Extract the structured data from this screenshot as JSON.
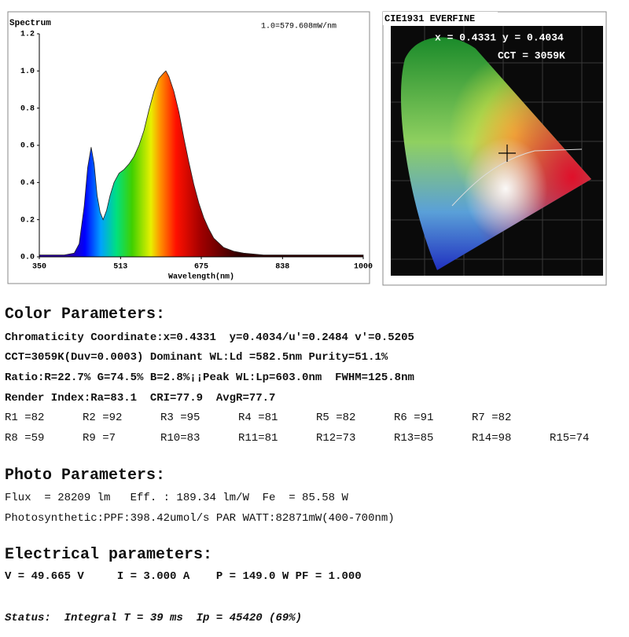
{
  "chart_data": {
    "type": "area",
    "title": "Spectrum",
    "annotation": "1.0=579.608mW/nm",
    "x_label": "Wavelength(nm)",
    "x": [
      350,
      400,
      420,
      430,
      440,
      447,
      454,
      460,
      466,
      472,
      478,
      485,
      492,
      500,
      510,
      520,
      530,
      540,
      550,
      560,
      570,
      580,
      590,
      600,
      604,
      610,
      620,
      630,
      640,
      650,
      660,
      670,
      680,
      690,
      700,
      720,
      740,
      760,
      800,
      900,
      1000
    ],
    "values": [
      0.01,
      0.01,
      0.02,
      0.07,
      0.27,
      0.48,
      0.59,
      0.5,
      0.33,
      0.24,
      0.2,
      0.25,
      0.33,
      0.4,
      0.45,
      0.47,
      0.5,
      0.54,
      0.6,
      0.68,
      0.79,
      0.89,
      0.96,
      0.99,
      1.0,
      0.97,
      0.89,
      0.78,
      0.64,
      0.51,
      0.39,
      0.29,
      0.21,
      0.15,
      0.1,
      0.05,
      0.03,
      0.02,
      0.01,
      0.01,
      0.01
    ],
    "xlim": [
      350,
      1000
    ],
    "xticks": [
      350,
      513,
      675,
      838,
      1000
    ],
    "ylim": [
      0,
      1.2
    ],
    "yticks": [
      {
        "value": 0,
        "label": "0.0"
      },
      0.2,
      0.4,
      0.6,
      0.8,
      {
        "value": 1,
        "label": "1.0"
      },
      1.2
    ],
    "grid": false
  },
  "cie": {
    "title": "CIE1931 EVERFINE",
    "coords": "x = 0.4331 y = 0.4034",
    "cct": "CCT = 3059K"
  },
  "color": {
    "heading": "Color Parameters:",
    "lines": [
      "Chromaticity Coordinate:x=0.4331  y=0.4034/u'=0.2484 v'=0.5205",
      "CCT=3059K(Duv=0.0003) Dominant WL:Ld =582.5nm Purity=51.1%",
      "Ratio:R=22.7% G=74.5% B=2.8%¡¡Peak WL:Lp=603.0nm  FWHM=125.8nm",
      "Render Index:Ra=83.1  CRI=77.9  AvgR=77.7"
    ],
    "r_values": [
      [
        "R1 =82",
        "R2 =92",
        "R3 =95",
        "R4 =81",
        "R5 =82",
        "R6 =91",
        "R7 =82"
      ],
      [
        "R8 =59",
        "R9 =7",
        "R10=83",
        "R11=81",
        "R12=73",
        "R13=85",
        "R14=98",
        "R15=74"
      ]
    ]
  },
  "photo": {
    "heading": "Photo Parameters:",
    "lines": [
      "Flux  = 28209 lm   Eff. : 189.34 lm/W  Fe  = 85.58 W",
      "Photosynthetic:PPF:398.42umol/s PAR WATT:82871mW(400-700nm)"
    ]
  },
  "electrical": {
    "heading": "Electrical parameters:",
    "lines": [
      "V = 49.665 V     I = 3.000 A    P = 149.0 W PF = 1.000"
    ]
  },
  "status": "Status:  Integral T = 39 ms  Ip = 45420 (69%)"
}
